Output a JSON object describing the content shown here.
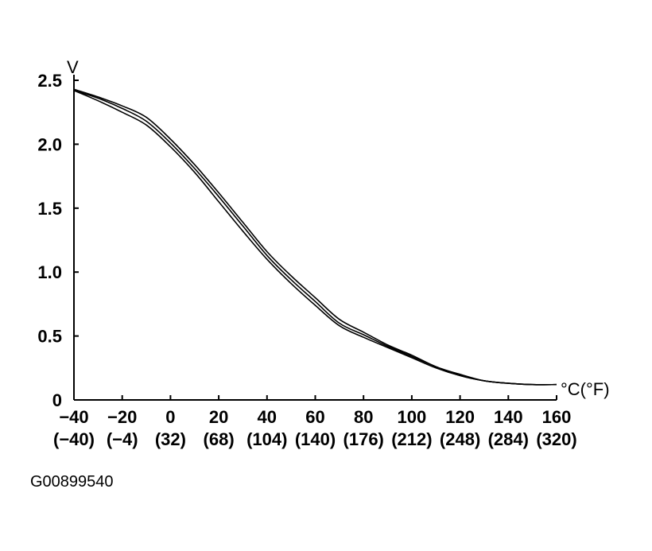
{
  "chart_data": {
    "type": "line",
    "title": "",
    "ylabel": "V",
    "xlabel": "°C(°F)",
    "xlim": [
      -40,
      160
    ],
    "ylim": [
      0,
      2.5
    ],
    "grid": false,
    "y_ticks": [
      {
        "value": 0,
        "label": "0"
      },
      {
        "value": 0.5,
        "label": "0.5"
      },
      {
        "value": 1.0,
        "label": "1.0"
      },
      {
        "value": 1.5,
        "label": "1.5"
      },
      {
        "value": 2.0,
        "label": "2.0"
      },
      {
        "value": 2.5,
        "label": "2.5"
      }
    ],
    "x_ticks": [
      {
        "value": -40,
        "label": "−40",
        "f_label": "(−40)"
      },
      {
        "value": -20,
        "label": "−20",
        "f_label": "(−4)"
      },
      {
        "value": 0,
        "label": "0",
        "f_label": "(32)"
      },
      {
        "value": 20,
        "label": "20",
        "f_label": "(68)"
      },
      {
        "value": 40,
        "label": "40",
        "f_label": "(104)"
      },
      {
        "value": 60,
        "label": "60",
        "f_label": "(140)"
      },
      {
        "value": 80,
        "label": "80",
        "f_label": "(176)"
      },
      {
        "value": 100,
        "label": "100",
        "f_label": "(212)"
      },
      {
        "value": 120,
        "label": "120",
        "f_label": "(248)"
      },
      {
        "value": 140,
        "label": "140",
        "f_label": "(284)"
      },
      {
        "value": 160,
        "label": "160",
        "f_label": "(320)"
      }
    ],
    "x": [
      -40,
      -30,
      -20,
      -10,
      0,
      10,
      20,
      30,
      40,
      50,
      60,
      70,
      80,
      90,
      100,
      110,
      120,
      130,
      140,
      150,
      160
    ],
    "series": [
      {
        "values": [
          2.42,
          2.34,
          2.25,
          2.15,
          1.98,
          1.78,
          1.55,
          1.32,
          1.1,
          0.91,
          0.74,
          0.58,
          0.49,
          0.41,
          0.33,
          0.25,
          0.19,
          0.15,
          0.13,
          0.12,
          0.12
        ]
      },
      {
        "values": [
          2.42,
          2.36,
          2.28,
          2.18,
          2.01,
          1.81,
          1.59,
          1.36,
          1.13,
          0.94,
          0.77,
          0.6,
          0.51,
          0.42,
          0.34,
          0.26,
          0.19,
          0.15,
          0.13,
          0.12,
          0.12
        ]
      },
      {
        "values": [
          2.43,
          2.37,
          2.3,
          2.21,
          2.04,
          1.84,
          1.62,
          1.39,
          1.16,
          0.97,
          0.8,
          0.63,
          0.53,
          0.43,
          0.35,
          0.26,
          0.2,
          0.15,
          0.13,
          0.12,
          0.12
        ]
      }
    ],
    "colors": {
      "line": "#000000",
      "axis": "#000000"
    }
  },
  "figure_code": "G00899540"
}
